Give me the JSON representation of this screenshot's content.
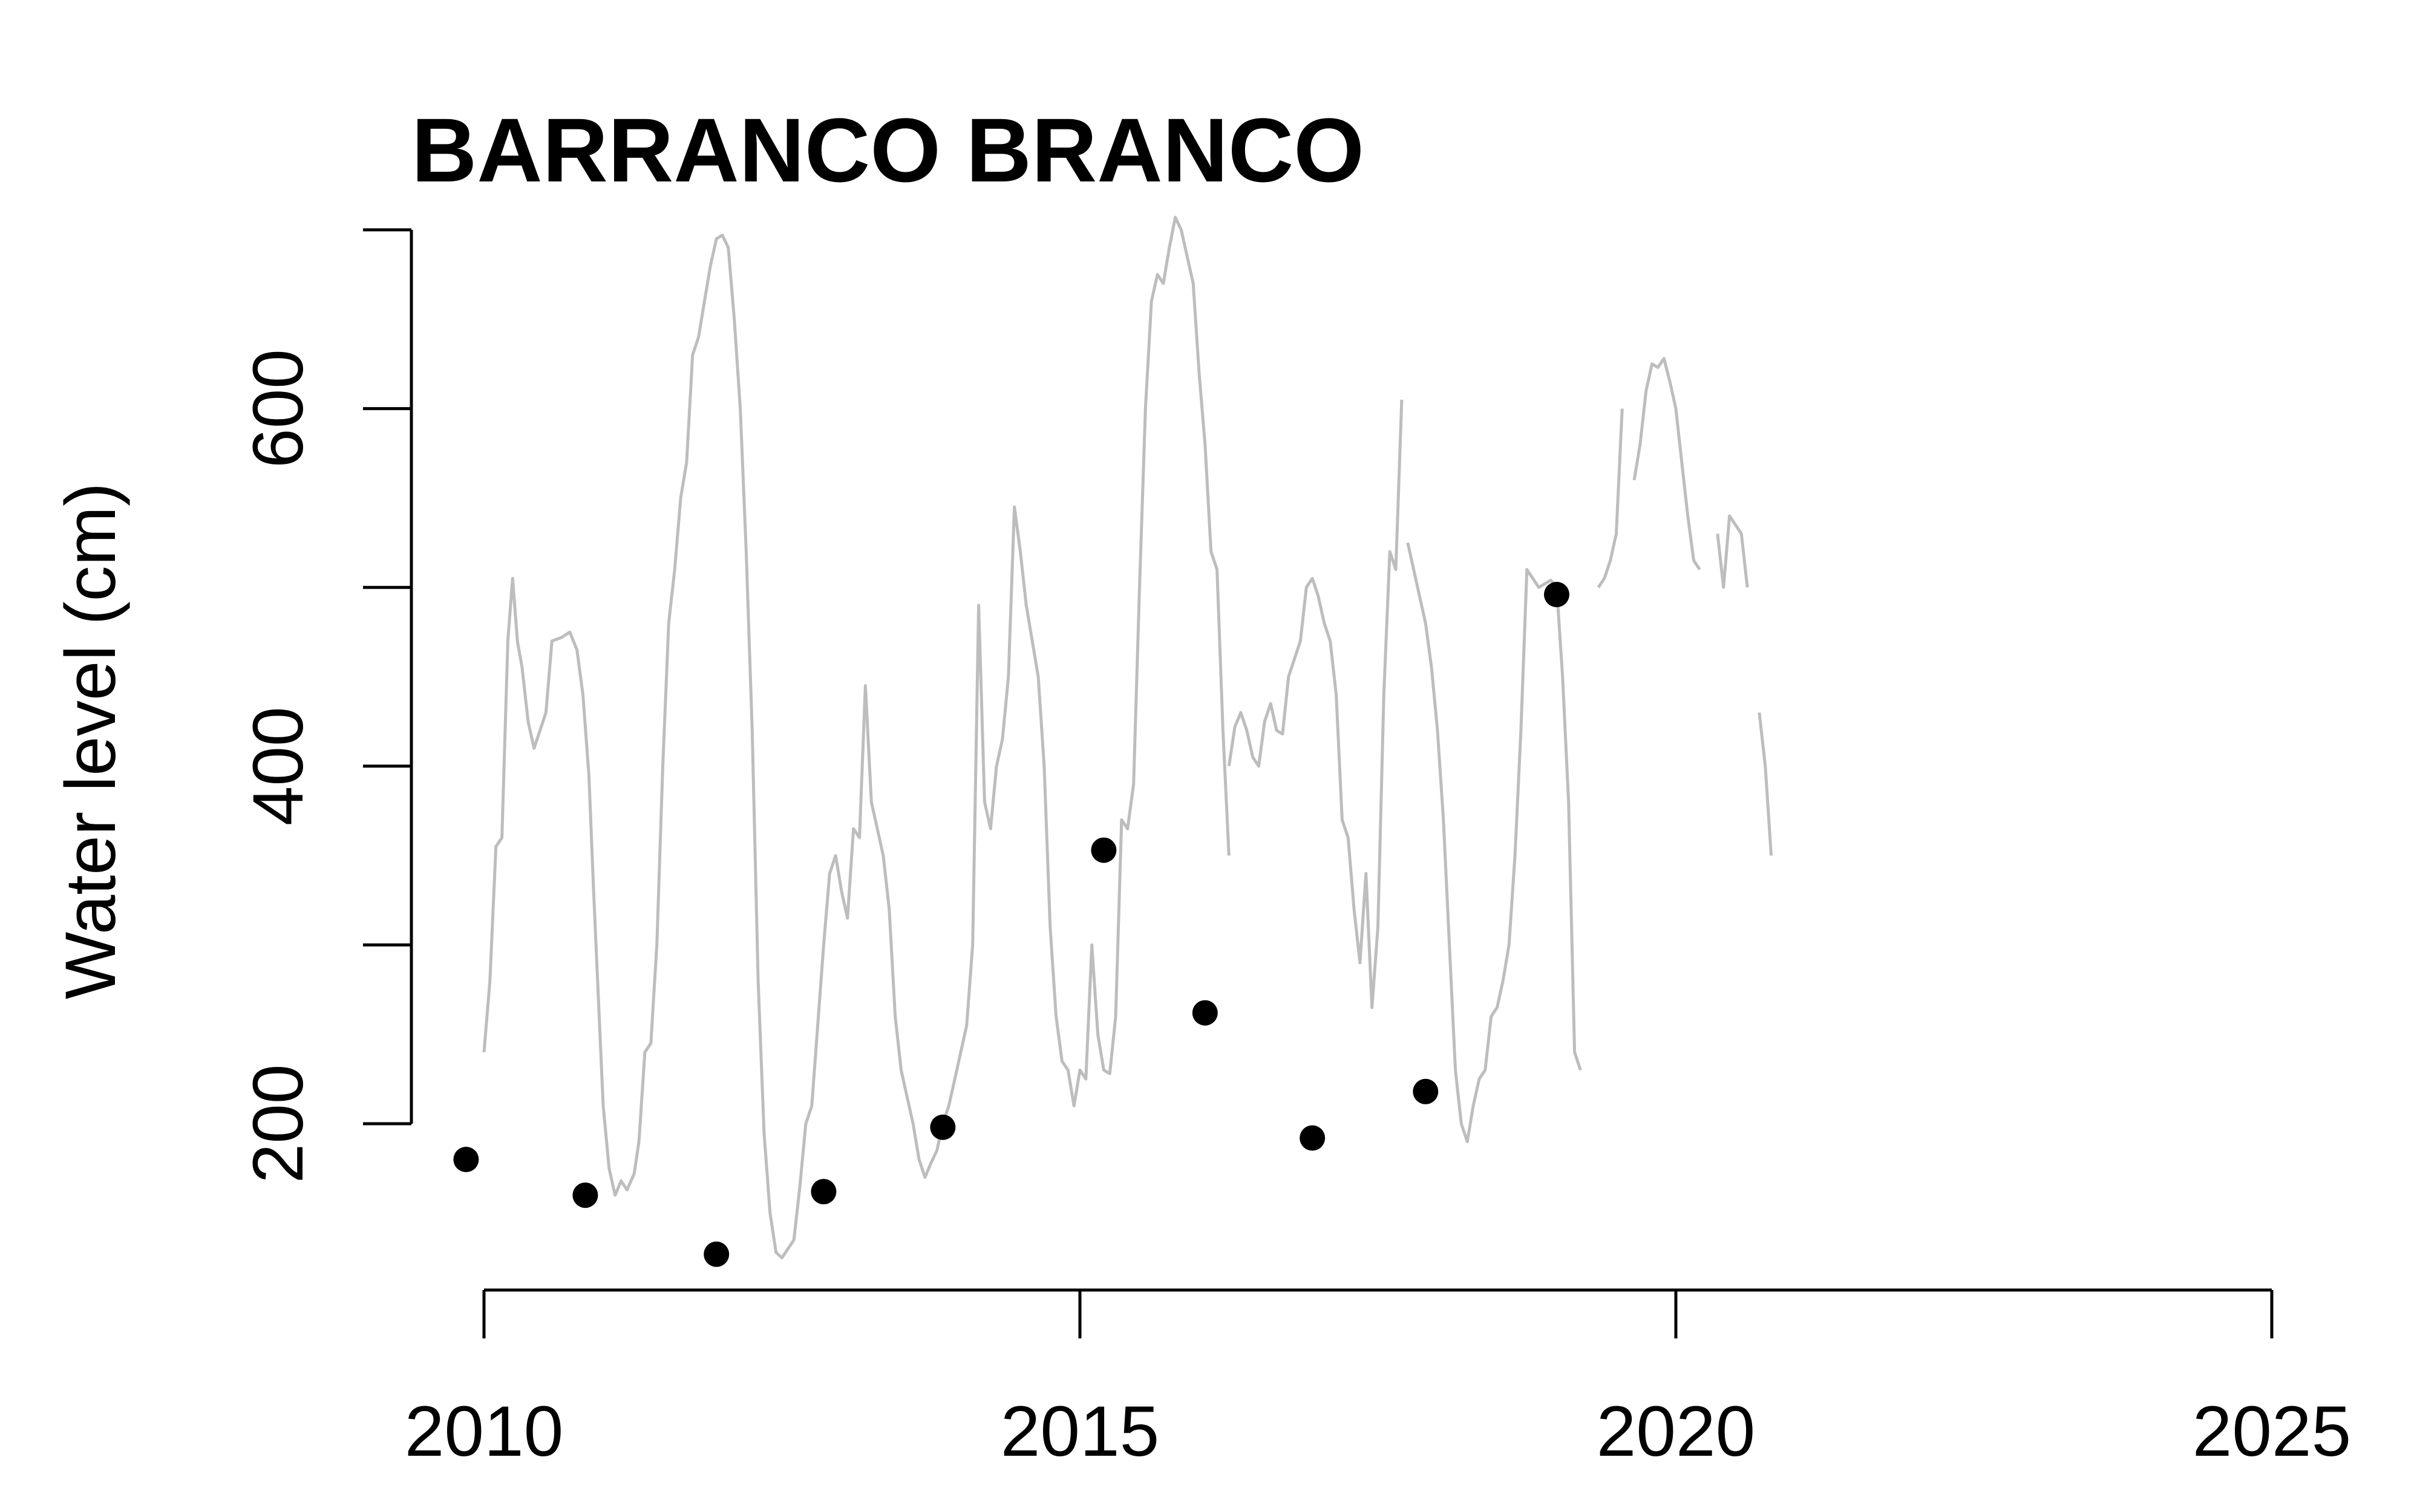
{
  "chart_data": {
    "type": "line",
    "title": "BARRANCO BRANCO",
    "xlabel": "",
    "ylabel": "Water level (cm)",
    "xlim": [
      2010,
      2025
    ],
    "ylim": [
      200,
      700
    ],
    "x_ticks": [
      "2010",
      "2015",
      "2020",
      "2025"
    ],
    "y_ticks": [
      "200",
      "400",
      "600"
    ],
    "grid": false,
    "colors": {
      "line": "#bdbdbd",
      "points": "#000000"
    },
    "series": [
      {
        "type": "line",
        "segments": [
          [
            [
              2010.0,
              240
            ],
            [
              2010.05,
              280
            ],
            [
              2010.1,
              355
            ],
            [
              2010.15,
              360
            ],
            [
              2010.2,
              470
            ],
            [
              2010.24,
              505
            ],
            [
              2010.28,
              470
            ],
            [
              2010.32,
              455
            ],
            [
              2010.37,
              425
            ],
            [
              2010.42,
              410
            ],
            [
              2010.47,
              420
            ],
            [
              2010.52,
              430
            ],
            [
              2010.57,
              470
            ],
            [
              2010.65,
              472
            ],
            [
              2010.72,
              475
            ],
            [
              2010.78,
              465
            ],
            [
              2010.83,
              440
            ],
            [
              2010.88,
              395
            ],
            [
              2010.92,
              330
            ],
            [
              2010.96,
              270
            ],
            [
              2011.0,
              210
            ],
            [
              2011.05,
              175
            ],
            [
              2011.1,
              160
            ],
            [
              2011.15,
              168
            ],
            [
              2011.2,
              163
            ],
            [
              2011.26,
              172
            ],
            [
              2011.3,
              190
            ],
            [
              2011.35,
              240
            ],
            [
              2011.4,
              245
            ],
            [
              2011.45,
              300
            ],
            [
              2011.5,
              400
            ],
            [
              2011.55,
              480
            ],
            [
              2011.6,
              510
            ],
            [
              2011.65,
              550
            ],
            [
              2011.7,
              570
            ],
            [
              2011.75,
              630
            ],
            [
              2011.8,
              640
            ],
            [
              2011.85,
              660
            ],
            [
              2011.9,
              680
            ],
            [
              2011.95,
              695
            ],
            [
              2012.0,
              697
            ],
            [
              2012.05,
              690
            ],
            [
              2012.1,
              650
            ],
            [
              2012.15,
              600
            ],
            [
              2012.2,
              520
            ],
            [
              2012.25,
              420
            ],
            [
              2012.3,
              280
            ],
            [
              2012.35,
              195
            ],
            [
              2012.4,
              150
            ],
            [
              2012.45,
              128
            ],
            [
              2012.5,
              125
            ],
            [
              2012.55,
              130
            ],
            [
              2012.6,
              135
            ],
            [
              2012.65,
              165
            ],
            [
              2012.7,
              200
            ],
            [
              2012.75,
              210
            ],
            [
              2012.8,
              255
            ],
            [
              2012.85,
              300
            ],
            [
              2012.9,
              340
            ],
            [
              2012.95,
              350
            ],
            [
              2013.0,
              330
            ],
            [
              2013.05,
              315
            ],
            [
              2013.1,
              365
            ],
            [
              2013.15,
              360
            ],
            [
              2013.2,
              445
            ],
            [
              2013.25,
              380
            ],
            [
              2013.3,
              365
            ],
            [
              2013.35,
              350
            ],
            [
              2013.4,
              320
            ],
            [
              2013.45,
              260
            ],
            [
              2013.5,
              230
            ],
            [
              2013.55,
              215
            ],
            [
              2013.6,
              200
            ],
            [
              2013.65,
              180
            ],
            [
              2013.7,
              170
            ],
            [
              2013.75,
              178
            ],
            [
              2013.8,
              185
            ],
            [
              2013.85,
              200
            ],
            [
              2013.9,
              210
            ],
            [
              2013.95,
              225
            ],
            [
              2014.0,
              240
            ],
            [
              2014.05,
              255
            ],
            [
              2014.1,
              300
            ],
            [
              2014.15,
              490
            ],
            [
              2014.2,
              380
            ],
            [
              2014.25,
              365
            ],
            [
              2014.3,
              400
            ],
            [
              2014.35,
              415
            ],
            [
              2014.4,
              450
            ],
            [
              2014.45,
              545
            ],
            [
              2014.5,
              520
            ],
            [
              2014.55,
              490
            ],
            [
              2014.6,
              470
            ],
            [
              2014.65,
              450
            ],
            [
              2014.7,
              400
            ],
            [
              2014.75,
              310
            ],
            [
              2014.8,
              260
            ],
            [
              2014.85,
              235
            ],
            [
              2014.9,
              230
            ],
            [
              2014.95,
              210
            ],
            [
              2015.0,
              230
            ],
            [
              2015.05,
              225
            ],
            [
              2015.1,
              300
            ],
            [
              2015.15,
              250
            ],
            [
              2015.2,
              230
            ],
            [
              2015.25,
              228
            ],
            [
              2015.3,
              260
            ],
            [
              2015.35,
              370
            ],
            [
              2015.4,
              365
            ],
            [
              2015.45,
              390
            ],
            [
              2015.5,
              500
            ],
            [
              2015.55,
              600
            ],
            [
              2015.6,
              660
            ],
            [
              2015.65,
              675
            ],
            [
              2015.7,
              670
            ],
            [
              2015.75,
              690
            ],
            [
              2015.8,
              707
            ],
            [
              2015.85,
              700
            ],
            [
              2015.9,
              685
            ],
            [
              2015.95,
              670
            ],
            [
              2016.0,
              620
            ],
            [
              2016.05,
              580
            ],
            [
              2016.1,
              520
            ],
            [
              2016.15,
              510
            ],
            [
              2016.2,
              420
            ],
            [
              2016.25,
              350
            ]
          ],
          [
            [
              2016.25,
              400
            ],
            [
              2016.3,
              422
            ],
            [
              2016.35,
              430
            ],
            [
              2016.4,
              420
            ],
            [
              2016.45,
              405
            ],
            [
              2016.5,
              400
            ],
            [
              2016.55,
              425
            ],
            [
              2016.6,
              435
            ],
            [
              2016.65,
              420
            ],
            [
              2016.7,
              418
            ],
            [
              2016.75,
              450
            ],
            [
              2016.8,
              460
            ],
            [
              2016.85,
              470
            ],
            [
              2016.9,
              500
            ],
            [
              2016.95,
              505
            ],
            [
              2017.0,
              495
            ],
            [
              2017.05,
              480
            ],
            [
              2017.1,
              470
            ],
            [
              2017.15,
              440
            ],
            [
              2017.2,
              370
            ],
            [
              2017.25,
              360
            ],
            [
              2017.3,
              320
            ],
            [
              2017.35,
              290
            ],
            [
              2017.4,
              340
            ],
            [
              2017.45,
              265
            ],
            [
              2017.5,
              310
            ],
            [
              2017.55,
              440
            ],
            [
              2017.6,
              520
            ],
            [
              2017.65,
              510
            ],
            [
              2017.7,
              605
            ]
          ],
          [
            [
              2017.75,
              525
            ],
            [
              2017.8,
              510
            ],
            [
              2017.85,
              495
            ],
            [
              2017.9,
              480
            ],
            [
              2017.95,
              455
            ],
            [
              2018.0,
              420
            ],
            [
              2018.05,
              370
            ],
            [
              2018.1,
              300
            ],
            [
              2018.15,
              230
            ],
            [
              2018.2,
              200
            ],
            [
              2018.25,
              190
            ],
            [
              2018.3,
              210
            ],
            [
              2018.35,
              225
            ],
            [
              2018.4,
              230
            ],
            [
              2018.45,
              260
            ],
            [
              2018.5,
              265
            ],
            [
              2018.55,
              280
            ],
            [
              2018.6,
              300
            ],
            [
              2018.65,
              350
            ],
            [
              2018.7,
              420
            ],
            [
              2018.75,
              510
            ],
            [
              2018.8,
              505
            ],
            [
              2018.85,
              500
            ],
            [
              2018.9,
              502
            ],
            [
              2018.95,
              504
            ],
            [
              2019.0,
              500
            ],
            [
              2019.05,
              450
            ],
            [
              2019.1,
              380
            ],
            [
              2019.15,
              240
            ],
            [
              2019.2,
              230
            ]
          ],
          [
            [
              2019.35,
              500
            ],
            [
              2019.4,
              505
            ],
            [
              2019.45,
              515
            ],
            [
              2019.5,
              530
            ],
            [
              2019.55,
              600
            ]
          ],
          [
            [
              2019.65,
              560
            ],
            [
              2019.7,
              580
            ],
            [
              2019.75,
              610
            ],
            [
              2019.8,
              625
            ],
            [
              2019.85,
              623
            ],
            [
              2019.9,
              628
            ],
            [
              2019.95,
              615
            ],
            [
              2020.0,
              600
            ],
            [
              2020.05,
              570
            ],
            [
              2020.1,
              540
            ],
            [
              2020.15,
              515
            ],
            [
              2020.2,
              510
            ]
          ],
          [
            [
              2020.35,
              530
            ],
            [
              2020.4,
              500
            ],
            [
              2020.45,
              540
            ],
            [
              2020.5,
              535
            ],
            [
              2020.55,
              530
            ],
            [
              2020.6,
              500
            ]
          ],
          [
            [
              2020.7,
              430
            ],
            [
              2020.75,
              400
            ],
            [
              2020.8,
              350
            ]
          ]
        ]
      },
      {
        "type": "scatter",
        "points": [
          [
            2009.85,
            180
          ],
          [
            2010.85,
            160
          ],
          [
            2011.95,
            127
          ],
          [
            2012.85,
            162
          ],
          [
            2013.85,
            198
          ],
          [
            2015.2,
            353
          ],
          [
            2016.05,
            262
          ],
          [
            2016.95,
            192
          ],
          [
            2017.9,
            218
          ],
          [
            2019.0,
            496
          ]
        ]
      }
    ]
  }
}
